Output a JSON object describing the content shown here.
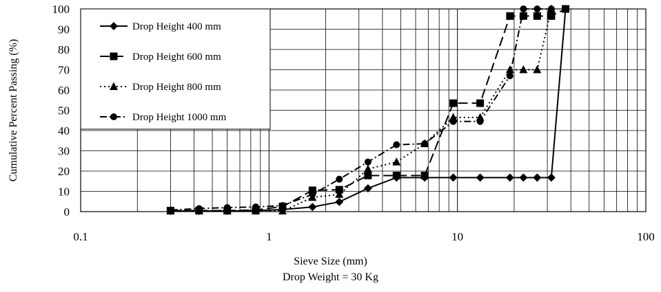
{
  "chart_data": {
    "type": "line",
    "xscale": "log",
    "xlim": [
      0.1,
      100
    ],
    "ylim": [
      0,
      100
    ],
    "grid": true,
    "legend_position": "top-left",
    "xlabel": "Sieve Size (mm)",
    "subtitle": "Drop Weight  = 30 Kg",
    "ylabel": "Cumulative Percent Passing (%)",
    "xticks": [
      0.1,
      1,
      10,
      100
    ],
    "xtick_labels": [
      "0.1",
      "1",
      "10",
      "100"
    ],
    "yticks": [
      0,
      10,
      20,
      30,
      40,
      50,
      60,
      70,
      80,
      90,
      100
    ],
    "ytick_labels": [
      "0",
      "10",
      "20",
      "30",
      "40",
      "50",
      "60",
      "70",
      "80",
      "90",
      "100"
    ],
    "series": [
      {
        "name": "Drop Height 400 mm",
        "marker": "diamond",
        "line": "solid",
        "x": [
          0.3,
          0.425,
          0.6,
          0.85,
          1.18,
          1.7,
          2.36,
          3.35,
          4.75,
          6.7,
          9.5,
          13.2,
          19,
          22.4,
          26.5,
          31.5,
          37.5
        ],
        "y": [
          0.3,
          0.3,
          0.3,
          0.5,
          1.0,
          2.3,
          4.8,
          11.5,
          16.8,
          16.8,
          16.8,
          16.8,
          16.8,
          16.8,
          16.8,
          16.8,
          100
        ]
      },
      {
        "name": "Drop Height 600 mm",
        "marker": "square",
        "line": "long-dash",
        "x": [
          0.3,
          0.425,
          0.6,
          0.85,
          1.18,
          1.7,
          2.36,
          3.35,
          4.75,
          6.7,
          9.5,
          13.2,
          19,
          22.4,
          26.5,
          31.5,
          37.5
        ],
        "y": [
          0.5,
          0.5,
          0.5,
          0.8,
          2.5,
          10.5,
          10.8,
          17.8,
          17.8,
          17.8,
          53.5,
          53.5,
          96.5,
          96.5,
          96.5,
          96.5,
          100
        ]
      },
      {
        "name": "Drop Height 800 mm",
        "marker": "triangle",
        "line": "dotted",
        "x": [
          0.3,
          0.425,
          0.6,
          0.85,
          1.18,
          1.7,
          2.36,
          3.35,
          4.75,
          6.7,
          9.5,
          13.2,
          19,
          22.4,
          26.5,
          31.5
        ],
        "y": [
          0.3,
          0.3,
          0.3,
          0.3,
          0.3,
          7.0,
          8.5,
          21.0,
          24.5,
          33.5,
          46.5,
          46.5,
          70.0,
          70.0,
          70.0,
          100
        ]
      },
      {
        "name": "Drop Height 1000 mm",
        "marker": "circle",
        "line": "dash-dot",
        "x": [
          0.3,
          0.425,
          0.6,
          0.85,
          1.18,
          1.7,
          2.36,
          3.35,
          4.75,
          6.7,
          9.5,
          13.2,
          19,
          22.4,
          26.5,
          31.5
        ],
        "y": [
          0.8,
          1.5,
          2.0,
          2.3,
          3.0,
          8.5,
          16.0,
          24.5,
          33.0,
          33.5,
          44.5,
          44.5,
          67.0,
          100,
          100,
          100
        ]
      }
    ]
  }
}
